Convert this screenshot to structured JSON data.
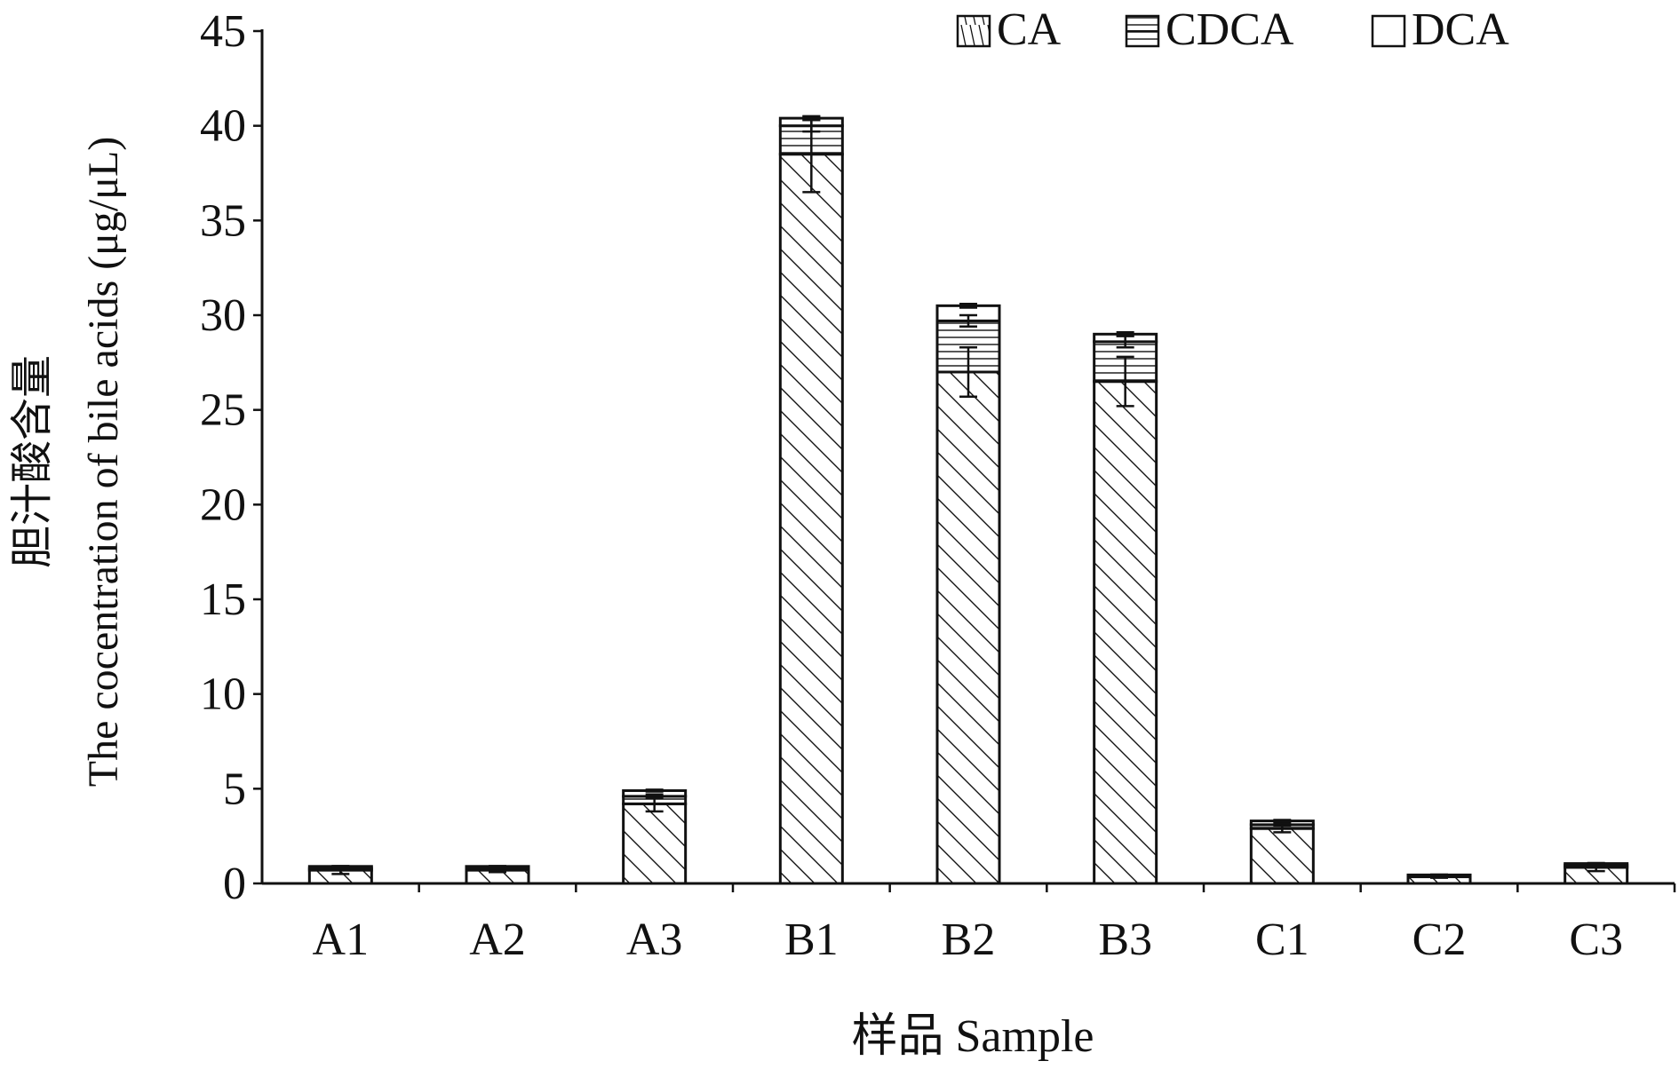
{
  "chart_data": {
    "type": "bar",
    "stacked": true,
    "categories": [
      "A1",
      "A2",
      "A3",
      "B1",
      "B2",
      "B3",
      "C1",
      "C2",
      "C3"
    ],
    "series": [
      {
        "name": "CA",
        "pattern": "diagonal-hatch",
        "values": [
          0.7,
          0.7,
          4.2,
          38.5,
          27.0,
          26.5,
          2.9,
          0.35,
          0.85
        ],
        "errors": [
          0.2,
          0.1,
          0.4,
          2.0,
          1.3,
          1.3,
          0.2,
          0.05,
          0.2
        ]
      },
      {
        "name": "CDCA",
        "pattern": "horizontal-lines",
        "values": [
          0.1,
          0.1,
          0.4,
          1.5,
          2.7,
          2.1,
          0.2,
          0.07,
          0.12
        ],
        "errors": [
          0.03,
          0.03,
          0.1,
          0.3,
          0.3,
          0.3,
          0.05,
          0.02,
          0.05
        ]
      },
      {
        "name": "DCA",
        "pattern": "blank",
        "values": [
          0.1,
          0.1,
          0.3,
          0.4,
          0.8,
          0.4,
          0.2,
          0.03,
          0.08
        ],
        "errors": [
          0.02,
          0.02,
          0.05,
          0.1,
          0.1,
          0.1,
          0.05,
          0.02,
          0.03
        ]
      }
    ],
    "ylabel_lines": [
      "胆汁酸含量",
      "The cocentration of bile acids (μg/μL)"
    ],
    "xlabel": "样品 Sample",
    "ylim": [
      0,
      45
    ],
    "yticks": [
      0,
      5,
      10,
      15,
      20,
      25,
      30,
      35,
      40,
      45
    ],
    "grid": false,
    "legend_position": "top-right"
  },
  "colors": {
    "ink": "#111111",
    "background": "#ffffff"
  }
}
